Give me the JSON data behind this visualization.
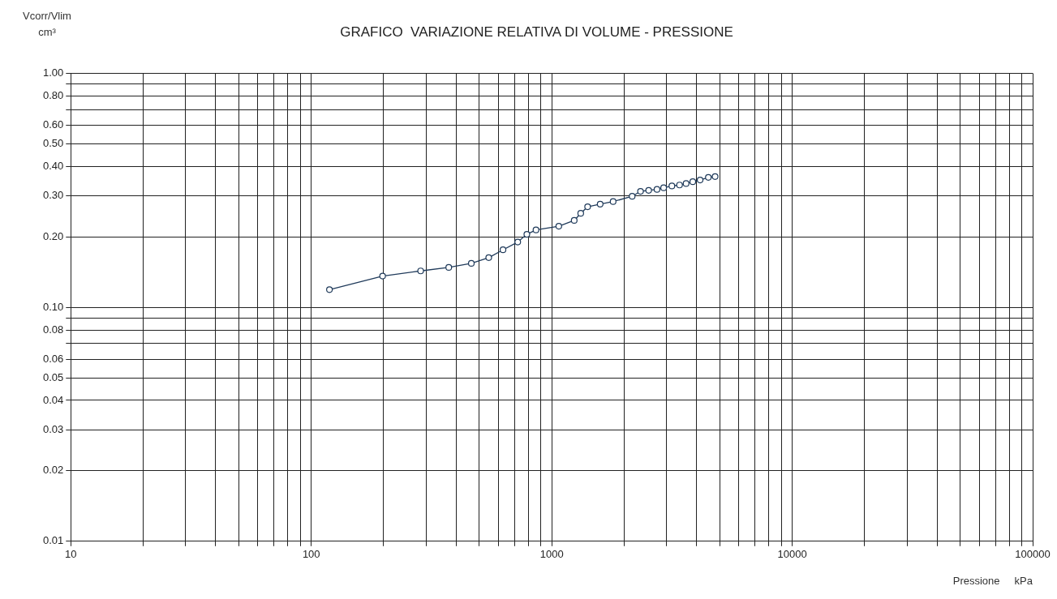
{
  "chart_data": {
    "type": "line",
    "title": "GRAFICO  VARIAZIONE RELATIVA DI VOLUME - PRESSIONE",
    "xlabel": "Pressione     kPa",
    "ylabel": "Vcorr/Vlim\ncm³",
    "log": "xy",
    "grid": true,
    "legend": false,
    "marker": "circle",
    "line_style": "solid",
    "xlim": [
      10,
      100000
    ],
    "ylim": [
      0.01,
      1
    ],
    "xticks": [
      10,
      {
        "value": 20,
        "label": null
      },
      {
        "value": 30,
        "label": null
      },
      {
        "value": 40,
        "label": null
      },
      {
        "value": 50,
        "label": null
      },
      {
        "value": 60,
        "label": null
      },
      {
        "value": 70,
        "label": null
      },
      {
        "value": 80,
        "label": null
      },
      {
        "value": 90,
        "label": null
      },
      100,
      {
        "value": 200,
        "label": null
      },
      {
        "value": 300,
        "label": null
      },
      {
        "value": 400,
        "label": null
      },
      {
        "value": 500,
        "label": null
      },
      {
        "value": 600,
        "label": null
      },
      {
        "value": 700,
        "label": null
      },
      {
        "value": 800,
        "label": null
      },
      {
        "value": 900,
        "label": null
      },
      1000,
      {
        "value": 2000,
        "label": null
      },
      {
        "value": 3000,
        "label": null
      },
      {
        "value": 4000,
        "label": null
      },
      {
        "value": 5000,
        "label": null
      },
      {
        "value": 6000,
        "label": null
      },
      {
        "value": 7000,
        "label": null
      },
      {
        "value": 8000,
        "label": null
      },
      {
        "value": 9000,
        "label": null
      },
      10000,
      {
        "value": 20000,
        "label": null
      },
      {
        "value": 30000,
        "label": null
      },
      {
        "value": 40000,
        "label": null
      },
      {
        "value": 50000,
        "label": null
      },
      {
        "value": 60000,
        "label": null
      },
      {
        "value": 70000,
        "label": null
      },
      {
        "value": 80000,
        "label": null
      },
      {
        "value": 90000,
        "label": null
      },
      100000
    ],
    "yticks": [
      {
        "value": 0.01,
        "label": "0.01"
      },
      {
        "value": 0.02,
        "label": "0.02"
      },
      {
        "value": 0.03,
        "label": "0.03"
      },
      {
        "value": 0.04,
        "label": "0.04"
      },
      {
        "value": 0.05,
        "label": "0.05"
      },
      {
        "value": 0.06,
        "label": "0.06"
      },
      {
        "value": 0.07,
        "label": null
      },
      {
        "value": 0.08,
        "label": "0.08"
      },
      {
        "value": 0.09,
        "label": null
      },
      {
        "value": 0.1,
        "label": "0.10"
      },
      {
        "value": 0.2,
        "label": "0.20"
      },
      {
        "value": 0.3,
        "label": "0.30"
      },
      {
        "value": 0.4,
        "label": "0.40"
      },
      {
        "value": 0.5,
        "label": "0.50"
      },
      {
        "value": 0.6,
        "label": "0.60"
      },
      {
        "value": 0.7,
        "label": null
      },
      {
        "value": 0.8,
        "label": "0.80"
      },
      {
        "value": 0.9,
        "label": null
      },
      {
        "value": 1,
        "label": "1.00"
      }
    ],
    "x": [
      119,
      198,
      285,
      373,
      463,
      547,
      627,
      722,
      788,
      860,
      1070,
      1240,
      1320,
      1410,
      1590,
      1800,
      2160,
      2340,
      2530,
      2740,
      2920,
      3160,
      3400,
      3620,
      3860,
      4140,
      4480,
      4780
    ],
    "series": [
      {
        "color": "#1f3a5a",
        "values": [
          0.119,
          0.136,
          0.143,
          0.148,
          0.154,
          0.163,
          0.176,
          0.19,
          0.205,
          0.214,
          0.222,
          0.235,
          0.252,
          0.269,
          0.276,
          0.283,
          0.298,
          0.313,
          0.316,
          0.319,
          0.324,
          0.33,
          0.333,
          0.338,
          0.344,
          0.35,
          0.359,
          0.362
        ]
      }
    ]
  }
}
